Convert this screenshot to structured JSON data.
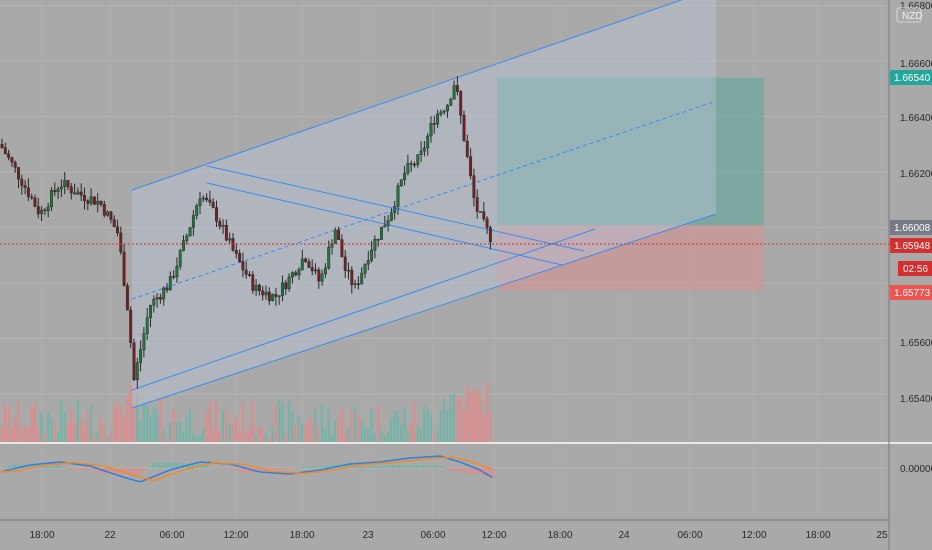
{
  "chart_data": {
    "type": "candlestick",
    "symbol_currency": "NZD",
    "price_axis": {
      "range": [
        1.6528,
        1.668
      ],
      "ticks": [
        "1.66800",
        "1.66600",
        "1.66400",
        "1.66200",
        "1.65600",
        "1.65400"
      ]
    },
    "macd_axis": {
      "ticks": [
        "0.00000"
      ]
    },
    "time_axis": {
      "ticks": [
        "18:00",
        "22",
        "06:00",
        "12:00",
        "18:00",
        "23",
        "06:00",
        "12:00",
        "18:00",
        "24",
        "06:00",
        "12:00",
        "18:00",
        "25"
      ]
    },
    "price_labels": {
      "target": {
        "value": "1.66540",
        "color": "#26a69a"
      },
      "entry": {
        "value": "1.66008",
        "color": "#787b86"
      },
      "last": {
        "value": "1.65948",
        "color": "#d32f2f"
      },
      "countdown": {
        "value": "02:56",
        "color": "#d32f2f"
      },
      "stop": {
        "value": "1.65773",
        "color": "#ef5350"
      }
    },
    "position_tool": {
      "entry": 1.66008,
      "target": 1.6654,
      "stop": 1.65773
    },
    "colors": {
      "up": "#1e7b3a",
      "down": "#7a1f1f",
      "channel": "#3d8bf0",
      "volume_up": "#6fb5a8",
      "volume_down": "#e08a8a",
      "macd": "#2e7de0",
      "signal": "#f08a24"
    }
  }
}
